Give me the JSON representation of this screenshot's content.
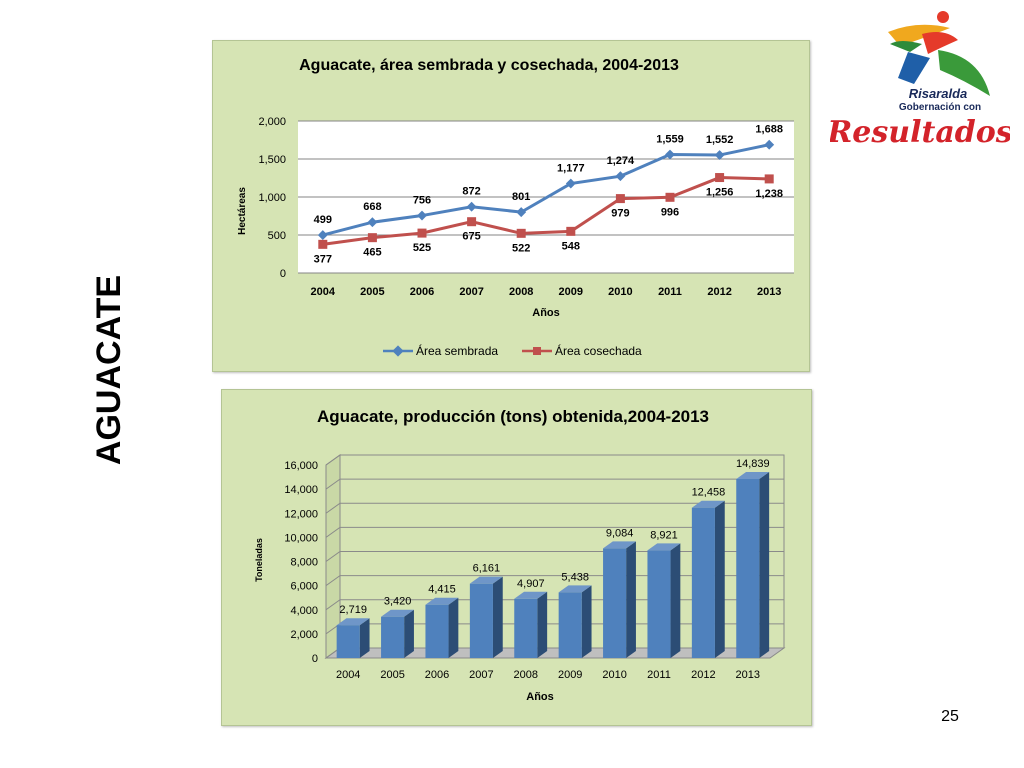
{
  "slide": {
    "side_title": "AGUACATE",
    "page_number": "25"
  },
  "logo": {
    "line1": "Risaralda",
    "line2": "Gobernación con",
    "line3": "Resultados"
  },
  "chart_data": [
    {
      "type": "line",
      "title": "Aguacate, área sembrada y cosechada, 2004-2013",
      "xlabel": "Años",
      "ylabel": "Hectáreas",
      "categories": [
        "2004",
        "2005",
        "2006",
        "2007",
        "2008",
        "2009",
        "2010",
        "2011",
        "2012",
        "2013"
      ],
      "ylim": [
        0,
        2000
      ],
      "yticks": [
        0,
        500,
        1000,
        1500,
        2000
      ],
      "ytick_labels": [
        "0",
        "500",
        "1,000",
        "1,500",
        "2,000"
      ],
      "grid": true,
      "legend": "bottom",
      "series": [
        {
          "name": "Área sembrada",
          "color": "#4f81bd",
          "marker": "diamond",
          "values": [
            499,
            668,
            756,
            872,
            801,
            1177,
            1274,
            1559,
            1552,
            1688
          ],
          "labels": [
            "499",
            "668",
            "756",
            "872",
            "801",
            "1,177",
            "1,274",
            "1,559",
            "1,552",
            "1,688"
          ]
        },
        {
          "name": "Área cosechada",
          "color": "#c0504d",
          "marker": "square",
          "values": [
            377,
            465,
            525,
            675,
            522,
            548,
            979,
            996,
            1256,
            1238
          ],
          "labels": [
            "377",
            "465",
            "525",
            "675",
            "522",
            "548",
            "979",
            "996",
            "1,256",
            "1,238"
          ]
        }
      ]
    },
    {
      "type": "bar",
      "title": "Aguacate, producción  (tons) obtenida,2004-2013",
      "xlabel": "Años",
      "ylabel": "Toneladas",
      "categories": [
        "2004",
        "2005",
        "2006",
        "2007",
        "2008",
        "2009",
        "2010",
        "2011",
        "2012",
        "2013"
      ],
      "values": [
        2719,
        3420,
        4415,
        6161,
        4907,
        5438,
        9084,
        8921,
        12458,
        14839
      ],
      "labels": [
        "2,719",
        "3,420",
        "4,415",
        "6,161",
        "4,907",
        "5,438",
        "9,084",
        "8,921",
        "12,458",
        "14,839"
      ],
      "ylim": [
        0,
        16000
      ],
      "yticks": [
        0,
        2000,
        4000,
        6000,
        8000,
        10000,
        12000,
        14000,
        16000
      ],
      "ytick_labels": [
        "0",
        "2,000",
        "4,000",
        "6,000",
        "8,000",
        "10,000",
        "12,000",
        "14,000",
        "16,000"
      ],
      "grid": true,
      "style": "3d",
      "color": "#4f81bd"
    }
  ]
}
